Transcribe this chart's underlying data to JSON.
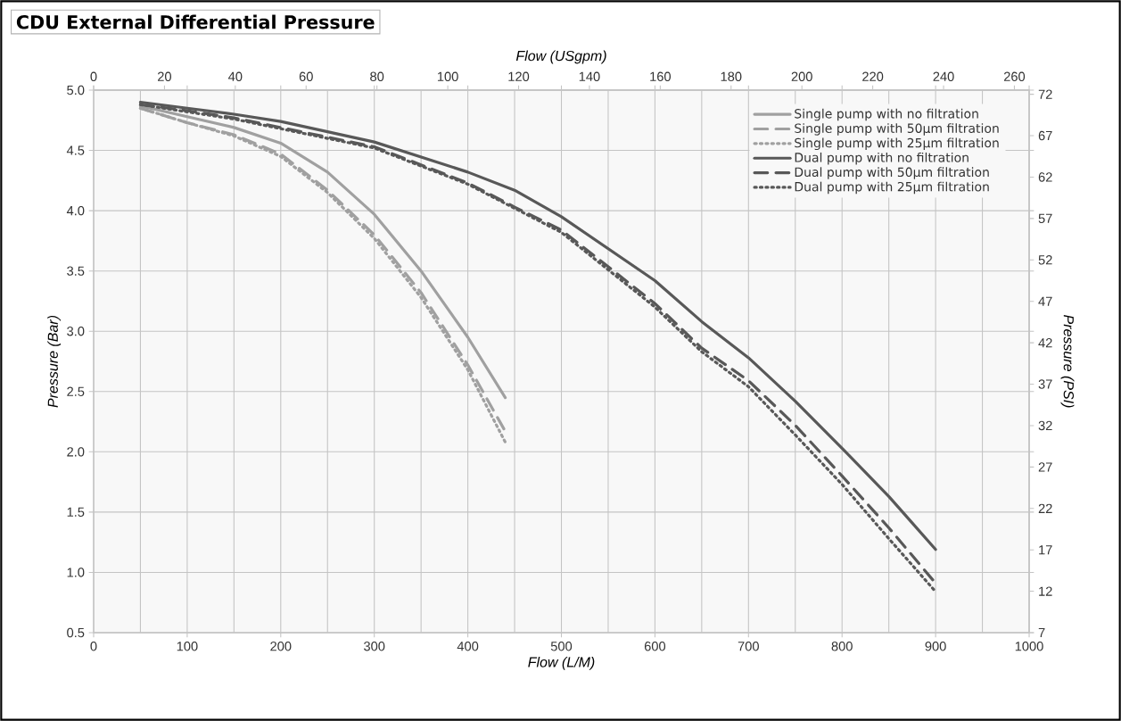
{
  "chart_data": {
    "type": "line",
    "title": "CDU External Differential Pressure",
    "xlabel": "Flow (L/M)",
    "ylabel": "Pressure (Bar)",
    "x2label": "Flow (USgpm)",
    "y2label": "Pressure (PSI)",
    "xlim": [
      0,
      1000
    ],
    "xticks": [
      0,
      100,
      200,
      300,
      400,
      500,
      600,
      700,
      800,
      900,
      1000
    ],
    "ylim": [
      0.5,
      5.0
    ],
    "yticks": [
      {
        "value": 0.5,
        "label": "0.5"
      },
      {
        "value": 1.0,
        "label": "1.0"
      },
      {
        "value": 1.5,
        "label": "1.5"
      },
      {
        "value": 2.0,
        "label": "2.0"
      },
      {
        "value": 2.5,
        "label": "2.5"
      },
      {
        "value": 3.0,
        "label": "3.0"
      },
      {
        "value": 3.5,
        "label": "3.5"
      },
      {
        "value": 4.0,
        "label": "4.0"
      },
      {
        "value": 4.5,
        "label": "4.5"
      },
      {
        "value": 5.0,
        "label": "5.0"
      }
    ],
    "x2lim": [
      0,
      264.17
    ],
    "x2ticks": [
      0,
      20,
      40,
      60,
      80,
      100,
      120,
      140,
      160,
      180,
      200,
      220,
      240,
      260
    ],
    "y2lim": [
      7,
      72.5
    ],
    "y2ticks": [
      7,
      12,
      17,
      22,
      27,
      32,
      37,
      42,
      47,
      52,
      57,
      62,
      67,
      72
    ],
    "grid": true,
    "legend": "top right",
    "series": [
      {
        "name": "Single pump with no filtration",
        "color": "#a0a0a0",
        "line_style": "solid",
        "x": [
          50,
          100,
          150,
          200,
          250,
          300,
          350,
          400,
          440
        ],
        "values": [
          4.87,
          4.78,
          4.69,
          4.56,
          4.32,
          3.97,
          3.5,
          2.95,
          2.45
        ]
      },
      {
        "name": "Single pump with 50µm filtration",
        "color": "#a0a0a0",
        "line_style": "dashed",
        "x": [
          50,
          100,
          150,
          200,
          250,
          300,
          350,
          400,
          440
        ],
        "values": [
          4.85,
          4.73,
          4.63,
          4.47,
          4.17,
          3.8,
          3.32,
          2.72,
          2.17
        ]
      },
      {
        "name": "Single pump with 25µm filtration",
        "color": "#a0a0a0",
        "line_style": "dotted",
        "x": [
          50,
          100,
          150,
          200,
          250,
          300,
          350,
          400,
          440
        ],
        "values": [
          4.85,
          4.73,
          4.62,
          4.45,
          4.15,
          3.77,
          3.28,
          2.68,
          2.08
        ]
      },
      {
        "name": "Dual pump with no filtration",
        "color": "#585858",
        "line_style": "solid",
        "x": [
          50,
          100,
          150,
          200,
          300,
          400,
          450,
          500,
          600,
          650,
          700,
          750,
          800,
          850,
          900
        ],
        "values": [
          4.9,
          4.85,
          4.8,
          4.74,
          4.57,
          4.32,
          4.17,
          3.95,
          3.42,
          3.08,
          2.78,
          2.42,
          2.03,
          1.63,
          1.19
        ]
      },
      {
        "name": "Dual pump with 50µm filtration",
        "color": "#585858",
        "line_style": "dashed",
        "x": [
          50,
          100,
          150,
          200,
          300,
          400,
          450,
          500,
          600,
          650,
          700,
          750,
          800,
          850,
          900
        ],
        "values": [
          4.88,
          4.83,
          4.77,
          4.69,
          4.53,
          4.23,
          4.03,
          3.84,
          3.23,
          2.86,
          2.59,
          2.22,
          1.8,
          1.37,
          0.91
        ]
      },
      {
        "name": "Dual pump with 25µm filtration",
        "color": "#585858",
        "line_style": "dotted",
        "x": [
          50,
          100,
          150,
          200,
          300,
          400,
          450,
          500,
          600,
          650,
          700,
          750,
          800,
          850,
          900
        ],
        "values": [
          4.88,
          4.82,
          4.76,
          4.68,
          4.52,
          4.22,
          4.02,
          3.82,
          3.2,
          2.83,
          2.54,
          2.14,
          1.73,
          1.28,
          0.84
        ]
      }
    ]
  }
}
